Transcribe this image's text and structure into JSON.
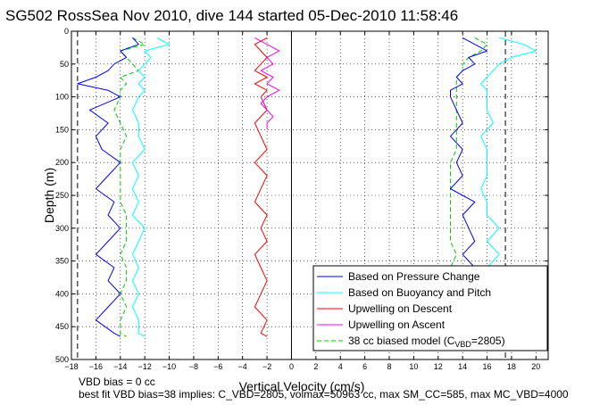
{
  "chart_data": {
    "type": "line",
    "title": "SG502 RossSea Nov 2010, dive 144 started 05-Dec-2010 11:58:46",
    "xlabel": "Vertical Velocity (cm/s)",
    "ylabel": "Depth (m)",
    "xlim": [
      -18,
      21
    ],
    "ylim": [
      0,
      500
    ],
    "y_reversed": true,
    "grid": true,
    "legend_position": "bottom-right",
    "xticks": [
      -18,
      -16,
      -14,
      -12,
      -10,
      -8,
      -6,
      -4,
      -2,
      0,
      2,
      4,
      6,
      8,
      10,
      12,
      14,
      16,
      18,
      20
    ],
    "yticks": [
      0,
      50,
      100,
      150,
      200,
      250,
      300,
      350,
      400,
      450,
      500
    ],
    "reference_lines": {
      "vertical_dashed_black": [
        -17.5,
        17.5
      ],
      "vertical_solid_black": [
        0
      ]
    },
    "series": [
      {
        "name": "Based on Pressure Change",
        "color": "#0000ff",
        "style": "solid",
        "depth": [
          10,
          20,
          30,
          40,
          50,
          60,
          70,
          80,
          90,
          100,
          120,
          140,
          160,
          180,
          200,
          220,
          240,
          260,
          280,
          300,
          320,
          340,
          360,
          380,
          400,
          420,
          440,
          460,
          465
        ],
        "descent_velocity": [
          -13,
          -12.5,
          -14,
          -13.5,
          -14.5,
          -15,
          -16,
          -17.5,
          -15,
          -14,
          -16.5,
          -15,
          -16,
          -15.5,
          -14,
          -15,
          -16,
          -14.5,
          -15,
          -14,
          -15,
          -16,
          -14.5,
          -15,
          -14,
          -15,
          -16,
          -14.5,
          -14
        ],
        "ascent_velocity": [
          14,
          15,
          16,
          14.5,
          15,
          14,
          13.5,
          14,
          13,
          13,
          13.5,
          14,
          13,
          14,
          13.5,
          14,
          13,
          15,
          14,
          14.5,
          15,
          14,
          15,
          14.5,
          14,
          14,
          14,
          13.5,
          13
        ]
      },
      {
        "name": "Based on Buoyancy and Pitch",
        "color": "#00ffff",
        "style": "solid",
        "depth": [
          10,
          20,
          30,
          40,
          50,
          60,
          70,
          80,
          90,
          100,
          120,
          140,
          160,
          180,
          200,
          220,
          240,
          260,
          280,
          300,
          320,
          340,
          360,
          380,
          400,
          420,
          440,
          460,
          465
        ],
        "descent_velocity": [
          -11,
          -10,
          -12,
          -11.5,
          -12,
          -12.5,
          -12,
          -12.5,
          -12,
          -12.5,
          -13,
          -12.5,
          -12.5,
          -12,
          -13,
          -12.5,
          -13,
          -12.5,
          -13,
          -12,
          -12.5,
          -13,
          -12.5,
          -13,
          -12.5,
          -13,
          -12.5,
          -12.5,
          -12
        ],
        "ascent_velocity": [
          17,
          19,
          20,
          18,
          17,
          16.5,
          16,
          15.5,
          16,
          16,
          16,
          16.5,
          15.5,
          16,
          16,
          16,
          15.5,
          16,
          16,
          17,
          16,
          17,
          16,
          16.5,
          16,
          16,
          16,
          15.5,
          15
        ]
      },
      {
        "name": "Upwelling on Descent",
        "color": "#ff0000",
        "style": "solid",
        "depth": [
          10,
          20,
          30,
          40,
          50,
          60,
          70,
          80,
          90,
          100,
          120,
          140,
          160,
          180,
          200,
          220,
          240,
          260,
          280,
          300,
          320,
          340,
          360,
          380,
          400,
          420,
          440,
          460,
          465
        ],
        "velocity": [
          -2,
          -3,
          -2.5,
          -2,
          -2.5,
          -3,
          -2,
          -3,
          -2,
          -2.5,
          -2,
          -3,
          -2.5,
          -2,
          -3,
          -2,
          -2.5,
          -3,
          -2,
          -2.5,
          -2,
          -3,
          -2.5,
          -2,
          -2.5,
          -3,
          -2,
          -2.5,
          -2
        ]
      },
      {
        "name": "Upwelling on Ascent",
        "color": "#ff00ff",
        "style": "solid",
        "depth": [
          10,
          20,
          30,
          40,
          50,
          60,
          70,
          80,
          90,
          100,
          110,
          120,
          130,
          140,
          150
        ],
        "velocity": [
          -3,
          -2,
          -1,
          -2,
          -1.5,
          -2.5,
          -1.5,
          -2,
          -1,
          -2,
          -2.5,
          -2,
          -1.5,
          -2,
          -2
        ]
      },
      {
        "name": "38 cc biased model (C_VBD=2805)",
        "color": "#00cc00",
        "style": "dashed",
        "depth": [
          10,
          20,
          30,
          40,
          50,
          60,
          70,
          80,
          90,
          100,
          120,
          140,
          160,
          180,
          200,
          220,
          240,
          260,
          280,
          300,
          320,
          340,
          360,
          380,
          400,
          420,
          440,
          460,
          465
        ],
        "descent_velocity": [
          -13,
          -12,
          -14,
          -13.5,
          -13,
          -12.5,
          -14,
          -13.5,
          -14,
          -14,
          -14.5,
          -14,
          -13.5,
          -14,
          -14,
          -14,
          -14,
          -14,
          -13.5,
          -13.5,
          -13.5,
          -14,
          -13.5,
          -13.5,
          -14,
          -13.5,
          -14,
          -14,
          -13.5
        ],
        "ascent_velocity": [
          15,
          16,
          15.5,
          14.5,
          14,
          14,
          13.5,
          13.5,
          13.5,
          13.5,
          13.5,
          13.5,
          13.5,
          13.5,
          13,
          13,
          13,
          13,
          13,
          13,
          13,
          13.5,
          13,
          13,
          13,
          13,
          13,
          13,
          13
        ]
      }
    ],
    "legend": {
      "entries": [
        {
          "label": "Based on Pressure Change",
          "color": "#0000ff",
          "style": "solid"
        },
        {
          "label": "Based on Buoyancy and Pitch",
          "color": "#00ffff",
          "style": "solid"
        },
        {
          "label": "Upwelling on Descent",
          "color": "#ff0000",
          "style": "solid"
        },
        {
          "label": "Upwelling on Ascent",
          "color": "#ff00ff",
          "style": "solid"
        },
        {
          "label_prefix": "38 cc biased model (C",
          "label_sub": "VBD",
          "label_suffix": "=2805)",
          "color": "#00cc00",
          "style": "dashed"
        }
      ]
    },
    "footnotes": [
      "VBD bias = 0 cc",
      "best fit VBD bias=38 implies: C_VBD=2805, volmax=50963 cc, max SM_CC=585, max MC_VBD=4000"
    ]
  }
}
